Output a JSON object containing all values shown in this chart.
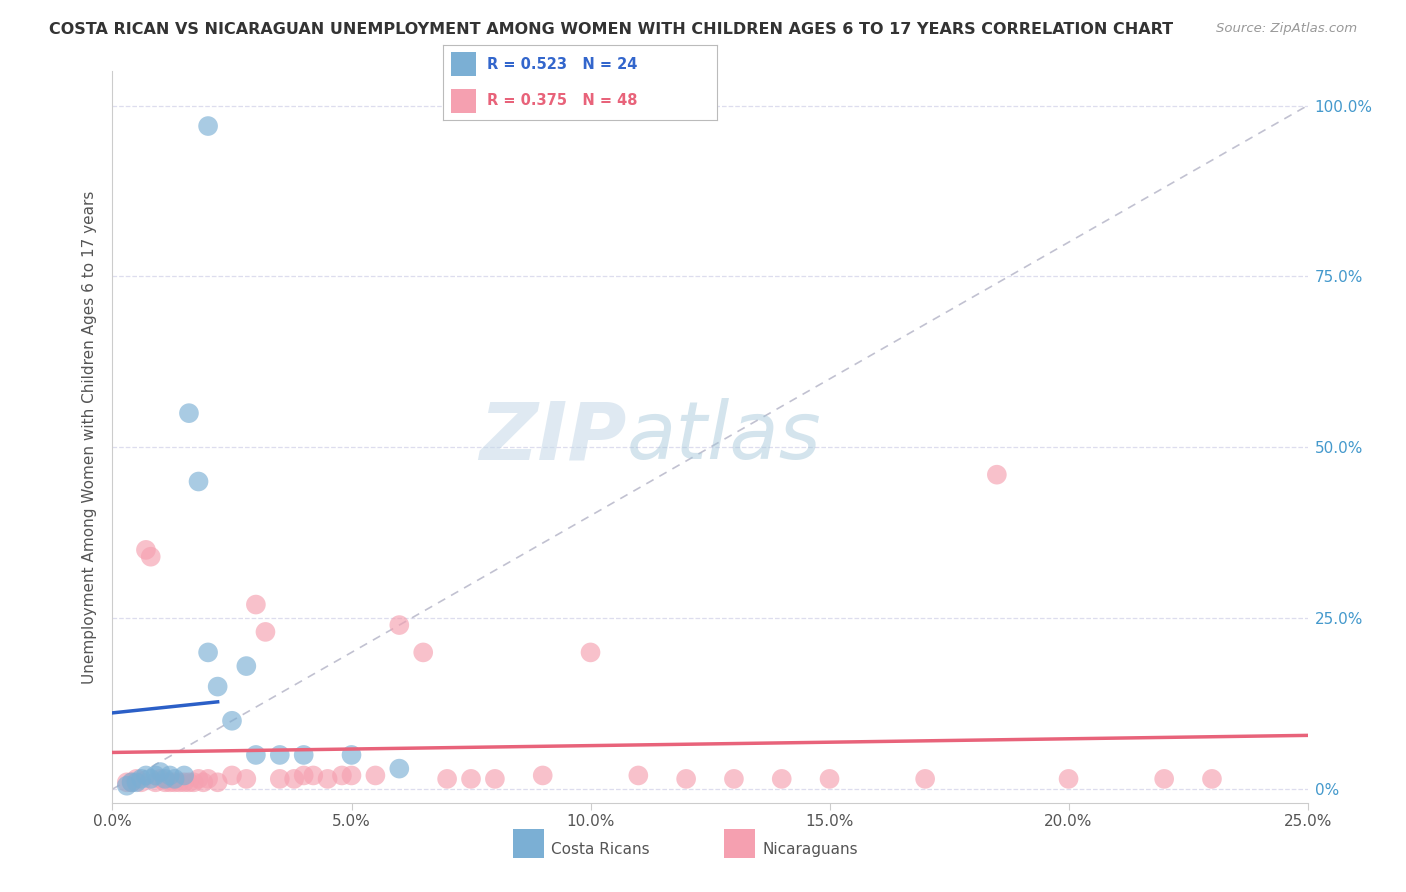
{
  "title": "COSTA RICAN VS NICARAGUAN UNEMPLOYMENT AMONG WOMEN WITH CHILDREN AGES 6 TO 17 YEARS CORRELATION CHART",
  "source": "Source: ZipAtlas.com",
  "ylabel": "Unemployment Among Women with Children Ages 6 to 17 years",
  "xlim": [
    0.0,
    0.25
  ],
  "ylim": [
    -0.02,
    1.05
  ],
  "plot_ylim": [
    0.0,
    1.0
  ],
  "xtick_vals": [
    0.0,
    0.05,
    0.1,
    0.15,
    0.2,
    0.25
  ],
  "xtick_labels": [
    "0.0%",
    "5.0%",
    "10.0%",
    "15.0%",
    "20.0%",
    "25.0%"
  ],
  "ytick_vals": [
    0.0,
    0.25,
    0.5,
    0.75,
    1.0
  ],
  "ytick_labels_right": [
    "0%",
    "25.0%",
    "50.0%",
    "75.0%",
    "100.0%"
  ],
  "cr_color": "#7BAFD4",
  "ni_color": "#F5A0B0",
  "blue_line_color": "#2B5FC7",
  "pink_line_color": "#E8637A",
  "diag_line_color": "#BBBBCC",
  "R_cr": 0.523,
  "N_cr": 24,
  "R_ni": 0.375,
  "N_ni": 48,
  "watermark_zip": "ZIP",
  "watermark_atlas": "atlas",
  "background_color": "#FFFFFF",
  "grid_color": "#DDDDEE",
  "cr_label": "Costa Ricans",
  "ni_label": "Nicaraguans",
  "legend_r_cr_color": "#3366CC",
  "legend_r_ni_color": "#E8637A",
  "cr_x": [
    0.003,
    0.004,
    0.005,
    0.006,
    0.007,
    0.008,
    0.009,
    0.01,
    0.011,
    0.012,
    0.013,
    0.015,
    0.016,
    0.018,
    0.02,
    0.022,
    0.025,
    0.028,
    0.03,
    0.035,
    0.04,
    0.05,
    0.06,
    0.02
  ],
  "cr_y": [
    0.005,
    0.01,
    0.01,
    0.015,
    0.02,
    0.015,
    0.02,
    0.025,
    0.015,
    0.02,
    0.015,
    0.02,
    0.55,
    0.45,
    0.2,
    0.15,
    0.1,
    0.18,
    0.05,
    0.05,
    0.05,
    0.05,
    0.03,
    0.97
  ],
  "ni_x": [
    0.003,
    0.004,
    0.005,
    0.006,
    0.007,
    0.008,
    0.009,
    0.01,
    0.011,
    0.012,
    0.013,
    0.014,
    0.015,
    0.016,
    0.017,
    0.018,
    0.019,
    0.02,
    0.022,
    0.025,
    0.028,
    0.03,
    0.032,
    0.035,
    0.038,
    0.04,
    0.042,
    0.045,
    0.048,
    0.05,
    0.055,
    0.06,
    0.065,
    0.07,
    0.075,
    0.08,
    0.09,
    0.1,
    0.11,
    0.12,
    0.13,
    0.14,
    0.15,
    0.17,
    0.185,
    0.2,
    0.22,
    0.23
  ],
  "ni_y": [
    0.01,
    0.01,
    0.015,
    0.01,
    0.35,
    0.34,
    0.01,
    0.015,
    0.01,
    0.01,
    0.01,
    0.01,
    0.01,
    0.01,
    0.01,
    0.015,
    0.01,
    0.015,
    0.01,
    0.02,
    0.015,
    0.27,
    0.23,
    0.015,
    0.015,
    0.02,
    0.02,
    0.015,
    0.02,
    0.02,
    0.02,
    0.24,
    0.2,
    0.015,
    0.015,
    0.015,
    0.02,
    0.2,
    0.02,
    0.015,
    0.015,
    0.015,
    0.015,
    0.015,
    0.46,
    0.015,
    0.015,
    0.015
  ]
}
